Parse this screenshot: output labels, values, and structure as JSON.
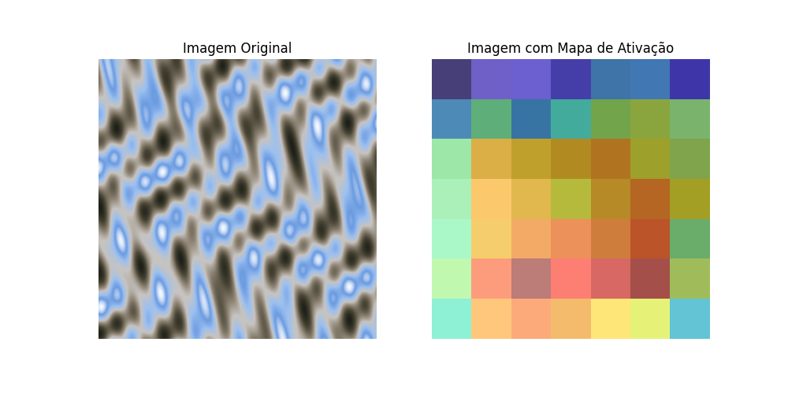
{
  "chart_data": [
    {
      "type": "image",
      "title": "Imagem Original",
      "tick_labels": false
    },
    {
      "type": "heatmap",
      "title": "Imagem com Mapa de Ativação",
      "tick_labels": false,
      "cells": [
        [
          "#463f78",
          "#6f60c8",
          "#6c5fcf",
          "#463ea8",
          "#3e74a8",
          "#4177b2",
          "#3e36a8"
        ],
        [
          "#4d8ab8",
          "#5eae7a",
          "#3774a4",
          "#42ab9c",
          "#72a44c",
          "#8aa53e",
          "#7ab46c"
        ],
        [
          "#9de8a8",
          "#dbae46",
          "#bfa02c",
          "#b18b22",
          "#b07420",
          "#9da02a",
          "#80a44c"
        ],
        [
          "#aaf0b8",
          "#fbc86c",
          "#e0b84e",
          "#b6ba3c",
          "#b78a28",
          "#b46622",
          "#a39e24"
        ],
        [
          "#aaf8c8",
          "#f5cd6c",
          "#f3aa66",
          "#ec915a",
          "#cf7d3c",
          "#bb5429",
          "#6aac6a"
        ],
        [
          "#c1f8b0",
          "#fd9c7c",
          "#bc7c77",
          "#fd7f74",
          "#d76863",
          "#a54f4a",
          "#a0bc5a"
        ],
        [
          "#8ef0d4",
          "#fec77c",
          "#fcaa7a",
          "#f4bb6c",
          "#fee679",
          "#e6f277",
          "#62c4d4"
        ]
      ]
    }
  ]
}
